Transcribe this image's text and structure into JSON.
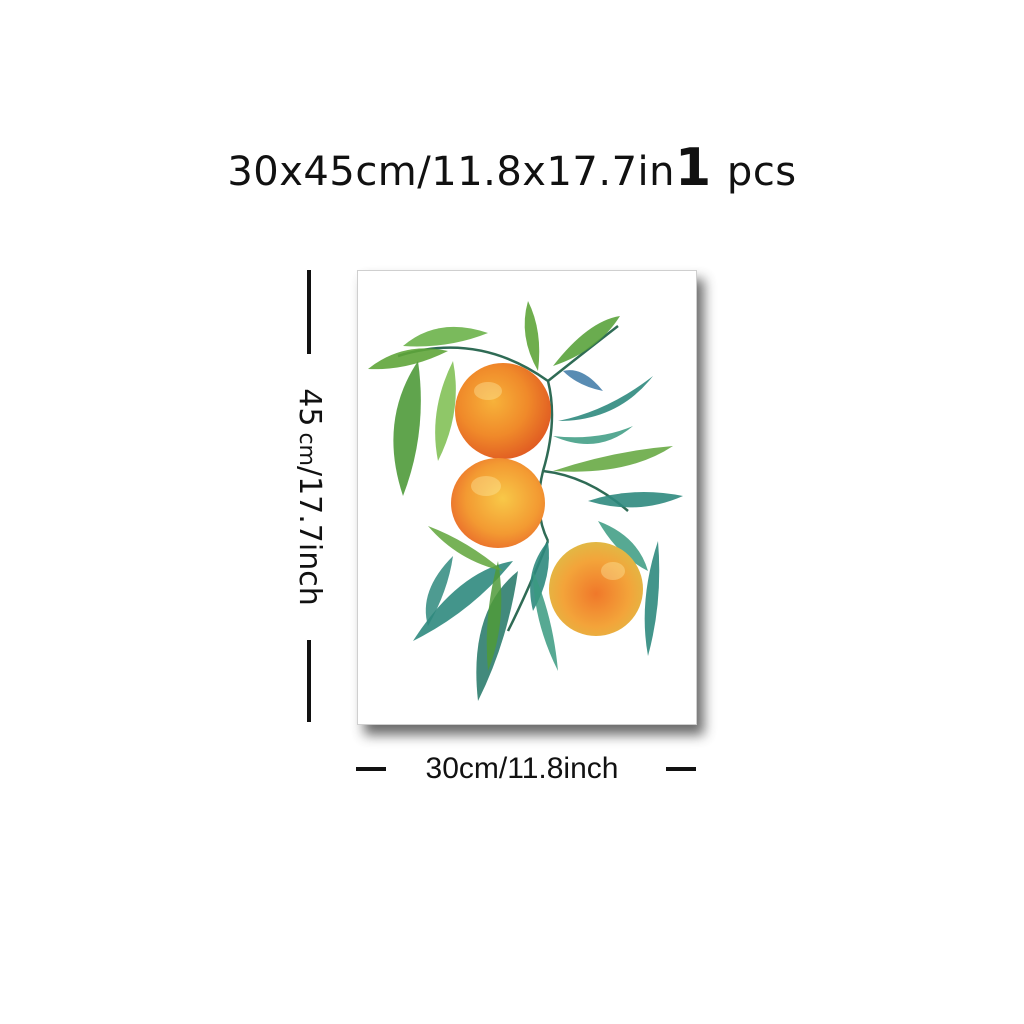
{
  "title": {
    "size_text": "30x45cm/11.8x17.7in",
    "quantity": "1",
    "unit": "pcs"
  },
  "dimensions": {
    "height_value": "45",
    "height_rest": "cm/17.7inch",
    "width_label": "30cm/11.8inch"
  },
  "artwork": {
    "subject": "watercolor oranges with leaves",
    "colors": {
      "orange": "#f0892a",
      "orange_light": "#f6c04a",
      "leaf_green": "#5fa53a",
      "leaf_teal": "#2f8a7e"
    }
  }
}
